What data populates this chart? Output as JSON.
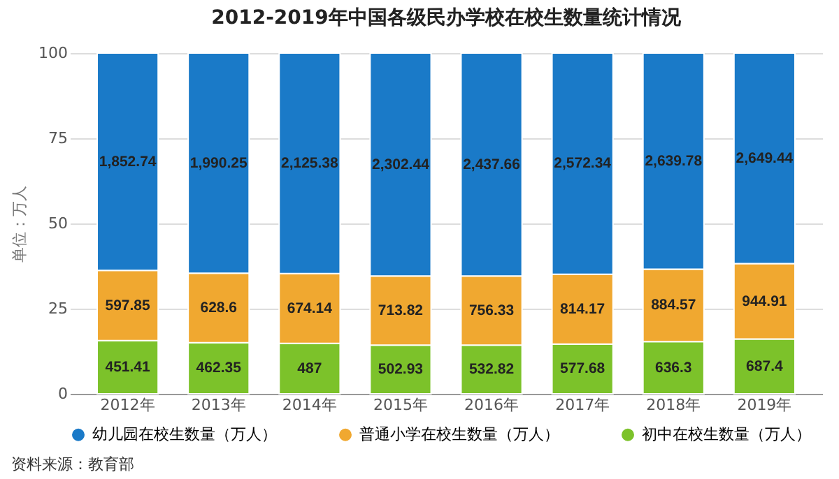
{
  "chart_data": {
    "type": "bar",
    "stacked": true,
    "title": "2012-2019年中国各级民办学校在校生数量统计情况",
    "ylabel": "单位：万人",
    "categories": [
      "2012年",
      "2013年",
      "2014年",
      "2015年",
      "2016年",
      "2017年",
      "2018年",
      "2019年"
    ],
    "series": [
      {
        "name": "初中在校生数量（万人）",
        "color": "#7cc22a",
        "values": [
          15.6,
          15.0,
          14.8,
          14.3,
          14.3,
          14.6,
          15.3,
          16.1
        ]
      },
      {
        "name": "普通小学在校生数量（万人）",
        "color": "#f0a830",
        "values": [
          20.6,
          20.4,
          20.5,
          20.3,
          20.3,
          20.5,
          21.3,
          22.1
        ]
      },
      {
        "name": "幼儿园在校生数量（万人）",
        "color": "#1a7ac8",
        "values": [
          63.8,
          64.6,
          64.7,
          65.4,
          65.4,
          64.9,
          63.4,
          61.8
        ]
      }
    ],
    "ylim": [
      0,
      100
    ],
    "yticks": [
      0,
      25,
      50,
      75,
      100
    ],
    "grid": "y",
    "legend": "bottom",
    "annotations": [
      "451.41",
      "462.35",
      "487",
      "502.93",
      "532.82",
      "577.68",
      "636.3",
      "687.4",
      "597.85",
      "628.6",
      "674.14",
      "713.82",
      "756.33",
      "814.17",
      "884.57",
      "944.91",
      "1,852.74",
      "1,990.25",
      "2,125.38",
      "2,302.44",
      "2,437.66",
      "2,572.34",
      "2,639.78",
      "2,649.44",
      "资料来源：教育部"
    ]
  }
}
